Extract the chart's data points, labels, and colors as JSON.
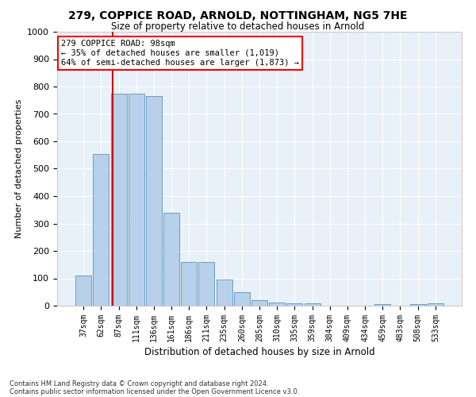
{
  "title1": "279, COPPICE ROAD, ARNOLD, NOTTINGHAM, NG5 7HE",
  "title2": "Size of property relative to detached houses in Arnold",
  "xlabel": "Distribution of detached houses by size in Arnold",
  "ylabel": "Number of detached properties",
  "bar_labels": [
    "37sqm",
    "62sqm",
    "87sqm",
    "111sqm",
    "136sqm",
    "161sqm",
    "186sqm",
    "211sqm",
    "235sqm",
    "260sqm",
    "285sqm",
    "310sqm",
    "335sqm",
    "359sqm",
    "384sqm",
    "409sqm",
    "434sqm",
    "459sqm",
    "483sqm",
    "508sqm",
    "533sqm"
  ],
  "bar_values": [
    110,
    555,
    775,
    775,
    765,
    340,
    160,
    160,
    95,
    50,
    20,
    13,
    10,
    10,
    0,
    0,
    0,
    5,
    0,
    5,
    10
  ],
  "bar_color": "#b8d0ea",
  "bar_edge_color": "#6a9ec0",
  "annotation_line1": "279 COPPICE ROAD: 98sqm",
  "annotation_line2": "← 35% of detached houses are smaller (1,019)",
  "annotation_line3": "64% of semi-detached houses are larger (1,873) →",
  "red_line_color": "#cc0000",
  "ylim": [
    0,
    1000
  ],
  "yticks": [
    0,
    100,
    200,
    300,
    400,
    500,
    600,
    700,
    800,
    900,
    1000
  ],
  "footnote1": "Contains HM Land Registry data © Crown copyright and database right 2024.",
  "footnote2": "Contains public sector information licensed under the Open Government Licence v3.0.",
  "bg_color": "#e8f0f8"
}
